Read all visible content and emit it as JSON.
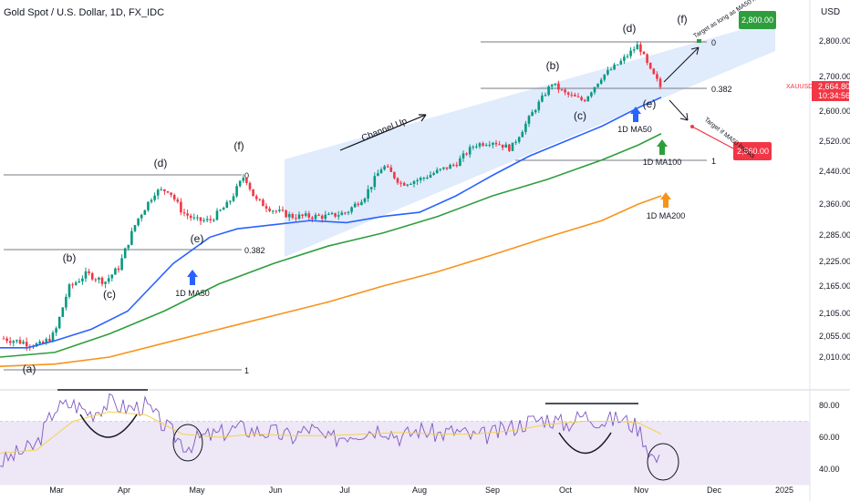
{
  "header": {
    "title": "Gold Spot / U.S. Dollar, 1D, FX_IDC",
    "currency": "USD"
  },
  "colors": {
    "up": "#089981",
    "down": "#f23645",
    "ma50": "#2962ff",
    "ma100": "#2e9e3c",
    "ma200": "#f7931a",
    "channel": "#dbe7fb",
    "rsi": "#7e57c2",
    "rsi_ma": "#f5d34c",
    "rsi_band": "#ede7f6",
    "price_tag": "#f23645",
    "target_up": "#2e9e3c",
    "target_down": "#f23645"
  },
  "chart_data": [
    {
      "type": "candlestick",
      "symbol": "XAUUSD",
      "y_ticks": [
        "2,800.00",
        "2,700.00",
        "2,600.00",
        "2,520.00",
        "2,440.00",
        "2,360.00",
        "2,285.00",
        "2,225.00",
        "2,165.00",
        "2,105.00",
        "2,055.00",
        "2,010.00"
      ],
      "x_ticks": [
        "Mar",
        "Apr",
        "May",
        "Jun",
        "Jul",
        "Aug",
        "Sep",
        "Oct",
        "Nov",
        "Dec",
        "2025"
      ],
      "last_price": {
        "symbol": "XAUUSD",
        "price": "2,664.80",
        "countdown": "10:34:56"
      },
      "targets": [
        {
          "price": "2,800.00",
          "label": "Target as long as MA50 holds"
        },
        {
          "price": "2,560.00",
          "label": "Target if MA50 breaks"
        }
      ],
      "waves": [
        "(a)",
        "(b)",
        "(c)",
        "(d)",
        "(e)",
        "(f)",
        "(b)",
        "(c)",
        "(d)",
        "(e)",
        "(f)"
      ],
      "fib_levels": [
        "0",
        "0.382",
        "1",
        "0",
        "0.382",
        "1"
      ],
      "annotations": [
        "Channel Up",
        "1D MA50",
        "1D MA50",
        "1D MA100",
        "1D MA200"
      ],
      "series": [
        {
          "name": "1D MA50",
          "points": [
            [
              0,
              2030
            ],
            [
              30,
              2030
            ],
            [
              60,
              2045
            ],
            [
              100,
              2070
            ],
            [
              140,
              2110
            ],
            [
              190,
              2220
            ],
            [
              230,
              2280
            ],
            [
              260,
              2300
            ],
            [
              300,
              2310
            ],
            [
              340,
              2320
            ],
            [
              380,
              2315
            ],
            [
              420,
              2330
            ],
            [
              460,
              2340
            ],
            [
              500,
              2380
            ],
            [
              540,
              2430
            ],
            [
              580,
              2480
            ],
            [
              620,
              2520
            ],
            [
              660,
              2560
            ],
            [
              700,
              2610
            ],
            [
              725,
              2640
            ]
          ]
        },
        {
          "name": "1D MA100",
          "points": [
            [
              0,
              2010
            ],
            [
              60,
              2020
            ],
            [
              120,
              2060
            ],
            [
              180,
              2110
            ],
            [
              240,
              2170
            ],
            [
              300,
              2220
            ],
            [
              360,
              2260
            ],
            [
              420,
              2290
            ],
            [
              480,
              2330
            ],
            [
              540,
              2380
            ],
            [
              600,
              2420
            ],
            [
              660,
              2470
            ],
            [
              700,
              2510
            ],
            [
              725,
              2540
            ]
          ]
        },
        {
          "name": "1D MA200",
          "points": [
            [
              0,
              1990
            ],
            [
              60,
              1995
            ],
            [
              120,
              2010
            ],
            [
              180,
              2040
            ],
            [
              240,
              2070
            ],
            [
              300,
              2100
            ],
            [
              360,
              2130
            ],
            [
              420,
              2165
            ],
            [
              480,
              2200
            ],
            [
              540,
              2240
            ],
            [
              600,
              2280
            ],
            [
              660,
              2320
            ],
            [
              700,
              2360
            ],
            [
              725,
              2380
            ]
          ]
        },
        {
          "name": "RSI",
          "points": [
            [
              0,
              44
            ],
            [
              20,
              50
            ],
            [
              40,
              55
            ],
            [
              60,
              78
            ],
            [
              80,
              81
            ],
            [
              100,
              75
            ],
            [
              120,
              82
            ],
            [
              140,
              78
            ],
            [
              160,
              80
            ],
            [
              175,
              70
            ],
            [
              190,
              62
            ],
            [
              205,
              54
            ],
            [
              220,
              60
            ],
            [
              240,
              62
            ],
            [
              260,
              66
            ],
            [
              280,
              64
            ],
            [
              300,
              63
            ],
            [
              320,
              60
            ],
            [
              340,
              66
            ],
            [
              360,
              58
            ],
            [
              380,
              62
            ],
            [
              400,
              64
            ],
            [
              420,
              66
            ],
            [
              440,
              60
            ],
            [
              460,
              65
            ],
            [
              480,
              62
            ],
            [
              500,
              64
            ],
            [
              520,
              60
            ],
            [
              540,
              62
            ],
            [
              560,
              66
            ],
            [
              580,
              70
            ],
            [
              600,
              72
            ],
            [
              620,
              68
            ],
            [
              640,
              74
            ],
            [
              660,
              70
            ],
            [
              680,
              72
            ],
            [
              700,
              66
            ],
            [
              715,
              48
            ],
            [
              725,
              44
            ]
          ]
        },
        {
          "name": "RSI MA",
          "points": [
            [
              0,
              50
            ],
            [
              40,
              52
            ],
            [
              80,
              70
            ],
            [
              120,
              76
            ],
            [
              160,
              74
            ],
            [
              200,
              62
            ],
            [
              240,
              60
            ],
            [
              280,
              62
            ],
            [
              320,
              61
            ],
            [
              360,
              61
            ],
            [
              400,
              62
            ],
            [
              440,
              63
            ],
            [
              480,
              62
            ],
            [
              520,
              62
            ],
            [
              560,
              64
            ],
            [
              600,
              68
            ],
            [
              640,
              70
            ],
            [
              680,
              70
            ],
            [
              700,
              69
            ],
            [
              725,
              62
            ]
          ]
        }
      ],
      "rsi_ticks": [
        "80.00",
        "60.00",
        "40.00"
      ]
    }
  ]
}
